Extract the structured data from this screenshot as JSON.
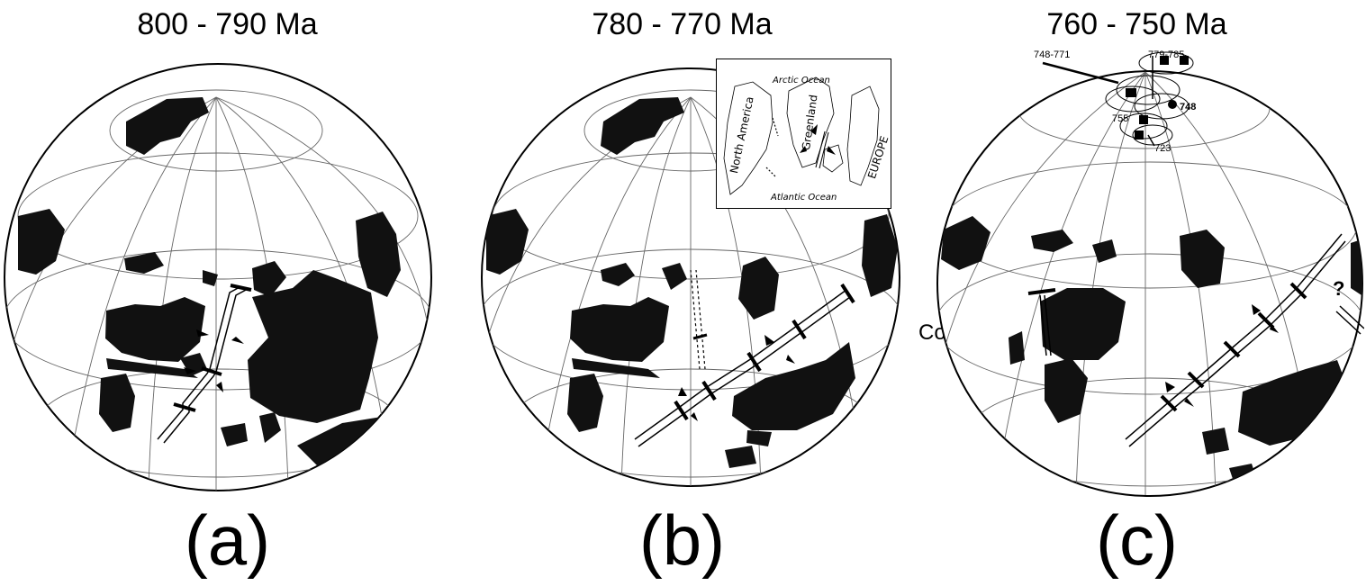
{
  "panels": [
    {
      "title": "800 - 790 Ma",
      "label": "(a)"
    },
    {
      "title": "780 - 770 Ma",
      "label": "(b)"
    },
    {
      "title": "760 - 750 Ma",
      "label": "(c)"
    }
  ],
  "inset": {
    "arctic": "Arctic Ocean",
    "atlantic": "Atlantic Ocean",
    "north_america": "North America",
    "greenland": "Greenland",
    "europe": "EUROPE"
  },
  "outside_label": "Co",
  "poles": {
    "range1": "748-771",
    "range2": "779-785",
    "a748": "748",
    "a755": "755",
    "a723": "723",
    "question": "?"
  },
  "colors": {
    "land": "#111111",
    "grid": "#555555",
    "ink": "#000000"
  }
}
